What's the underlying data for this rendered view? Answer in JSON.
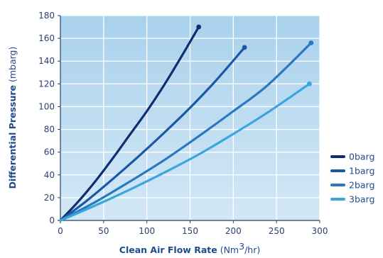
{
  "chart_data": {
    "type": "line",
    "xlabel": {
      "main": "Clean Air Flow Rate",
      "unit_pre": "(Nm",
      "unit_sup": "3",
      "unit_post": "/hr)"
    },
    "ylabel": {
      "main": "Differential Pressure",
      "unit": "(mbarg)"
    },
    "xlim": [
      0,
      300
    ],
    "ylim": [
      0,
      180
    ],
    "xticks": [
      0,
      50,
      100,
      150,
      200,
      250,
      300
    ],
    "yticks": [
      0,
      20,
      40,
      60,
      80,
      100,
      120,
      140,
      160,
      180
    ],
    "xtick_labels": [
      "0",
      "50",
      "100",
      "150",
      "200",
      "250",
      "300"
    ],
    "ytick_labels": [
      "0",
      "20",
      "40",
      "60",
      "80",
      "100",
      "120",
      "140",
      "160",
      "180"
    ],
    "grid": true,
    "legend_position": "right",
    "series": [
      {
        "name": "0barg",
        "color": "#0f2d73",
        "x": [
          0,
          20,
          40,
          60,
          80,
          100,
          120,
          140,
          160
        ],
        "y": [
          0,
          16,
          34,
          54,
          75,
          96,
          119,
          144,
          170
        ]
      },
      {
        "name": "1barg",
        "color": "#1a58a6",
        "x": [
          0,
          30,
          60,
          90,
          120,
          150,
          180,
          213
        ],
        "y": [
          0,
          17,
          36,
          56,
          77,
          99,
          123,
          152
        ]
      },
      {
        "name": "2barg",
        "color": "#2a78bf",
        "x": [
          0,
          40,
          80,
          120,
          160,
          200,
          240,
          290
        ],
        "y": [
          0,
          16,
          34,
          53,
          74,
          96,
          119,
          156
        ]
      },
      {
        "name": "3barg",
        "color": "#3aa6dc",
        "x": [
          0,
          40,
          80,
          120,
          160,
          200,
          240,
          288
        ],
        "y": [
          0,
          13,
          27,
          42,
          58,
          76,
          95,
          120
        ]
      }
    ]
  }
}
